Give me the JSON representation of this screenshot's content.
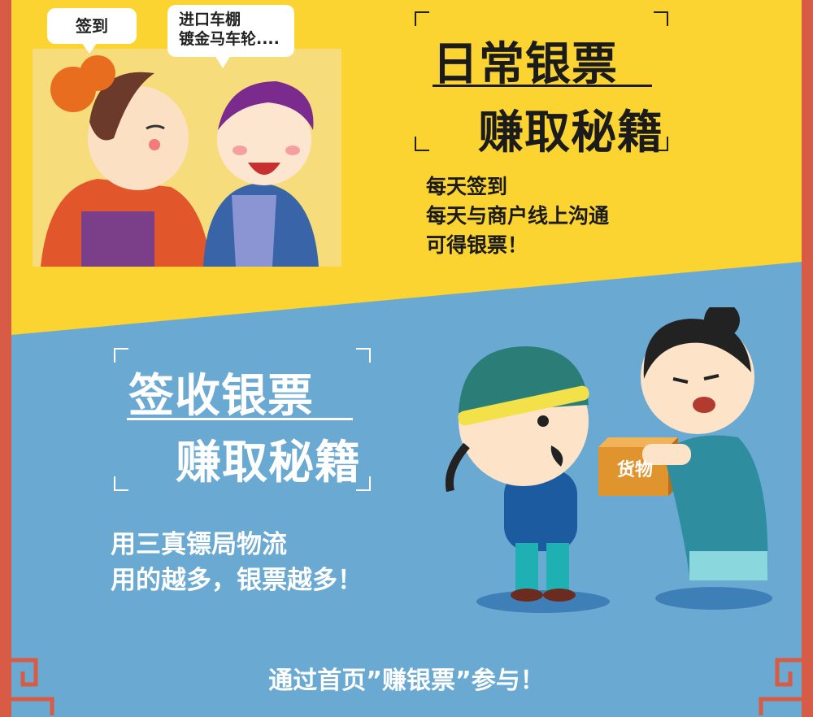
{
  "top": {
    "bubble_left": "签到",
    "bubble_right": "进口车棚\n镀金马车轮....",
    "title_line1": "日常银票",
    "title_line2": "赚取秘籍",
    "desc": [
      "每天签到",
      "每天与商户线上沟通",
      "可得银票！"
    ]
  },
  "bottom": {
    "title_line1": "签收银票",
    "title_line2": "赚取秘籍",
    "desc": [
      "用三真镖局物流",
      "用的越多，银票越多！"
    ],
    "box_label": "货物"
  },
  "footer": "通过首页”赚银票”参与！",
  "colors": {
    "yellow": "#fbd431",
    "blue": "#6aa9d2",
    "border": "#d85b45"
  }
}
